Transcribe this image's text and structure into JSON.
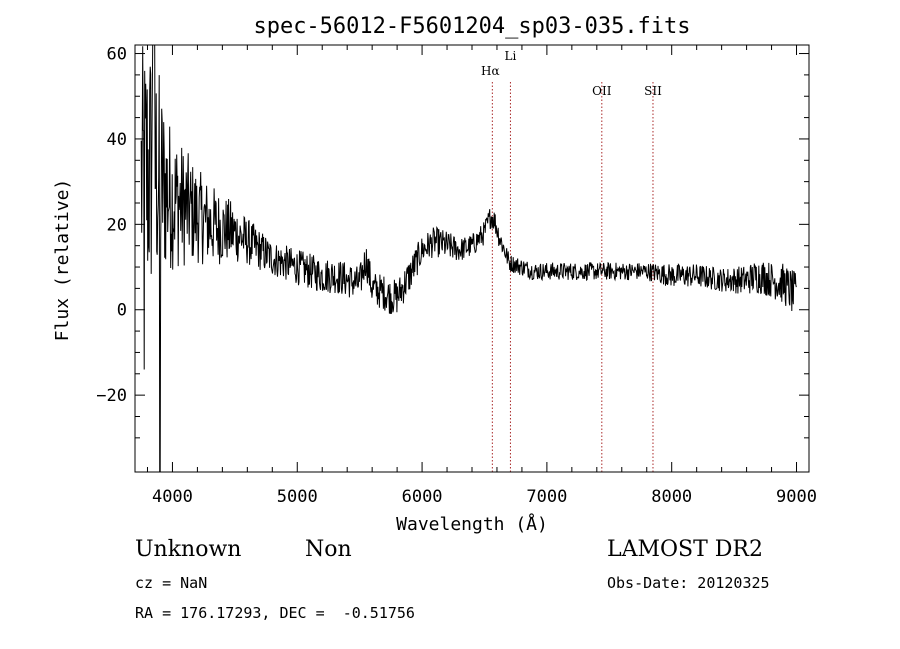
{
  "chart_data": {
    "type": "line",
    "title": "spec-56012-F5601204_sp03-035.fits",
    "xlabel": "Wavelength (Å)",
    "ylabel": "Flux (relative)",
    "xlim": [
      3700,
      9100
    ],
    "ylim": [
      -38,
      62
    ],
    "xticks": [
      4000,
      5000,
      6000,
      7000,
      8000,
      9000
    ],
    "yticks": [
      -20,
      0,
      20,
      40,
      60
    ],
    "line_color": "#000000",
    "marker_color": "#aa2a2a",
    "lines": [
      {
        "label": "Hα",
        "x": 6563
      },
      {
        "label": "Li",
        "x": 6708
      },
      {
        "label": "OII",
        "x": 7440
      },
      {
        "label": "SII",
        "x": 7850
      }
    ],
    "spectrum_envelope": {
      "x": [
        3750,
        3800,
        3850,
        3900,
        3950,
        4000,
        4100,
        4200,
        4300,
        4400,
        4500,
        4600,
        4700,
        4800,
        4900,
        5000,
        5100,
        5200,
        5300,
        5400,
        5500,
        5550,
        5600,
        5700,
        5750,
        5800,
        5900,
        6000,
        6100,
        6200,
        6300,
        6400,
        6500,
        6550,
        6580,
        6620,
        6700,
        6800,
        6900,
        7000,
        7200,
        7400,
        7600,
        7800,
        8000,
        8200,
        8400,
        8600,
        8700,
        8800,
        8900,
        9000
      ],
      "y": [
        30,
        32,
        34,
        30,
        28,
        26,
        24,
        22,
        20,
        19,
        18,
        16,
        14,
        12,
        11,
        10,
        9,
        8,
        8,
        7,
        6,
        12,
        5,
        4,
        3,
        3,
        8,
        14,
        16,
        15,
        14,
        15,
        18,
        22,
        21,
        17,
        11,
        10,
        9,
        9,
        9,
        9,
        9,
        9,
        8,
        8,
        7,
        7,
        8,
        7,
        6,
        3
      ],
      "noise": [
        22,
        24,
        22,
        18,
        14,
        12,
        10,
        8,
        7,
        6,
        5,
        4,
        3.5,
        3,
        3,
        3,
        3,
        3,
        3,
        3,
        3,
        3,
        3,
        3,
        3,
        3,
        3,
        2.5,
        2.5,
        2.5,
        2,
        2,
        2,
        2,
        2,
        2,
        1.5,
        1.5,
        1.5,
        1.5,
        1.5,
        1.5,
        1.5,
        1.5,
        2,
        2,
        2,
        2.5,
        3,
        3,
        3.5,
        4
      ]
    }
  },
  "info": {
    "class": "Unknown",
    "subclass": "Non",
    "cz": "cz = NaN",
    "radec": "RA = 176.17293, DEC =  -0.51756",
    "survey": "LAMOST DR2",
    "obsdate": "Obs-Date: 20120325"
  }
}
